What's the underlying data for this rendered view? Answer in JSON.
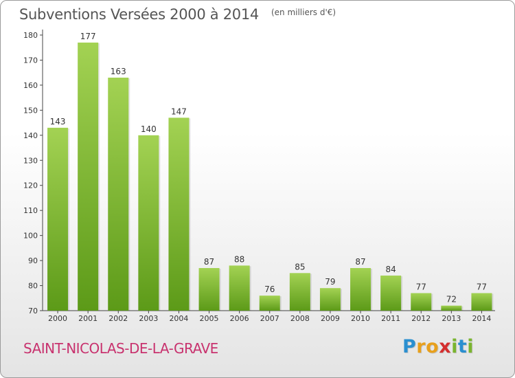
{
  "header": {
    "title": "Subventions Versées 2000 à 2014",
    "subtitle": "(en milliers d'€)"
  },
  "footer": {
    "commune": "SAINT-NICOLAS-DE-LA-GRAVE",
    "logo_letters": [
      "P",
      "r",
      "o",
      "x",
      "i",
      "t",
      "i"
    ],
    "logo_colors": [
      "#2a8fd0",
      "#e8a01c",
      "#e8a01c",
      "#d42e2e",
      "#7ab52f",
      "#2a8fd0",
      "#7ab52f"
    ]
  },
  "colors": {
    "bar_top": "#a3d253",
    "bar_bottom": "#5c9a18",
    "axis": "#444444",
    "grid": "#d0d0d0",
    "title": "#555555",
    "commune": "#c8326e"
  },
  "chart_data": {
    "type": "bar",
    "title": "Subventions Versées 2000 à 2014",
    "subtitle": "(en milliers d'€)",
    "categories": [
      "2000",
      "2001",
      "2002",
      "2003",
      "2004",
      "2005",
      "2006",
      "2007",
      "2008",
      "2009",
      "2010",
      "2011",
      "2012",
      "2013",
      "2014"
    ],
    "values": [
      143,
      177,
      163,
      140,
      147,
      87,
      88,
      76,
      85,
      79,
      87,
      84,
      77,
      72,
      77
    ],
    "ylim": [
      70,
      180
    ],
    "yticks": [
      70,
      80,
      90,
      100,
      110,
      120,
      130,
      140,
      150,
      160,
      170,
      180
    ],
    "grid": false,
    "xlabel": "",
    "ylabel": ""
  }
}
